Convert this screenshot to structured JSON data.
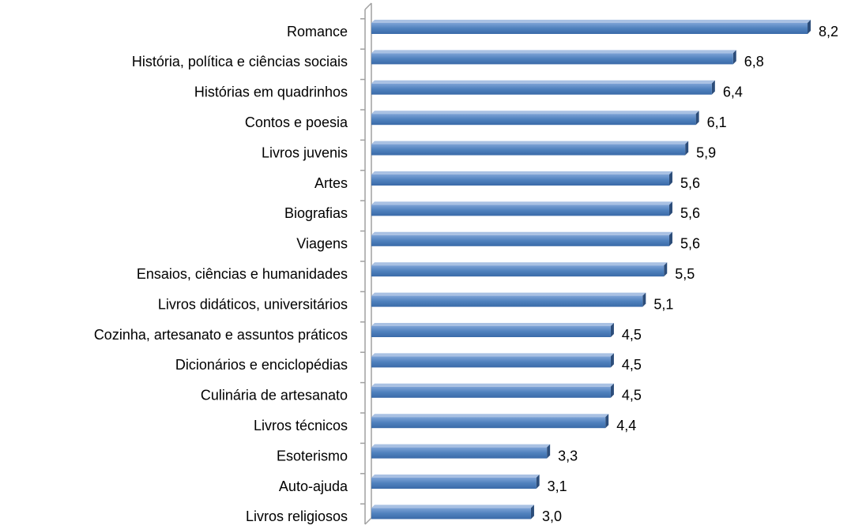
{
  "chart_data": {
    "type": "bar",
    "orientation": "horizontal",
    "categories": [
      "Romance",
      "História, política e ciências sociais",
      "Histórias em quadrinhos",
      "Contos e poesia",
      "Livros juvenis",
      "Artes",
      "Biografias",
      "Viagens",
      "Ensaios, ciências e humanidades",
      "Livros didáticos, universitários",
      "Cozinha, artesanato e assuntos práticos",
      "Dicionários e enciclopédias",
      "Culinária de artesanato",
      "Livros técnicos",
      "Esoterismo",
      "Auto-ajuda",
      "Livros religiosos"
    ],
    "values": [
      8.2,
      6.8,
      6.4,
      6.1,
      5.9,
      5.6,
      5.6,
      5.6,
      5.5,
      5.1,
      4.5,
      4.5,
      4.5,
      4.4,
      3.3,
      3.1,
      3.0
    ],
    "value_labels": [
      "8,2",
      "6,8",
      "6,4",
      "6,1",
      "5,9",
      "5,6",
      "5,6",
      "5,6",
      "5,5",
      "5,1",
      "4,5",
      "4,5",
      "4,5",
      "4,4",
      "3,3",
      "3,1",
      "3,0"
    ],
    "color": "#4f81bd"
  }
}
